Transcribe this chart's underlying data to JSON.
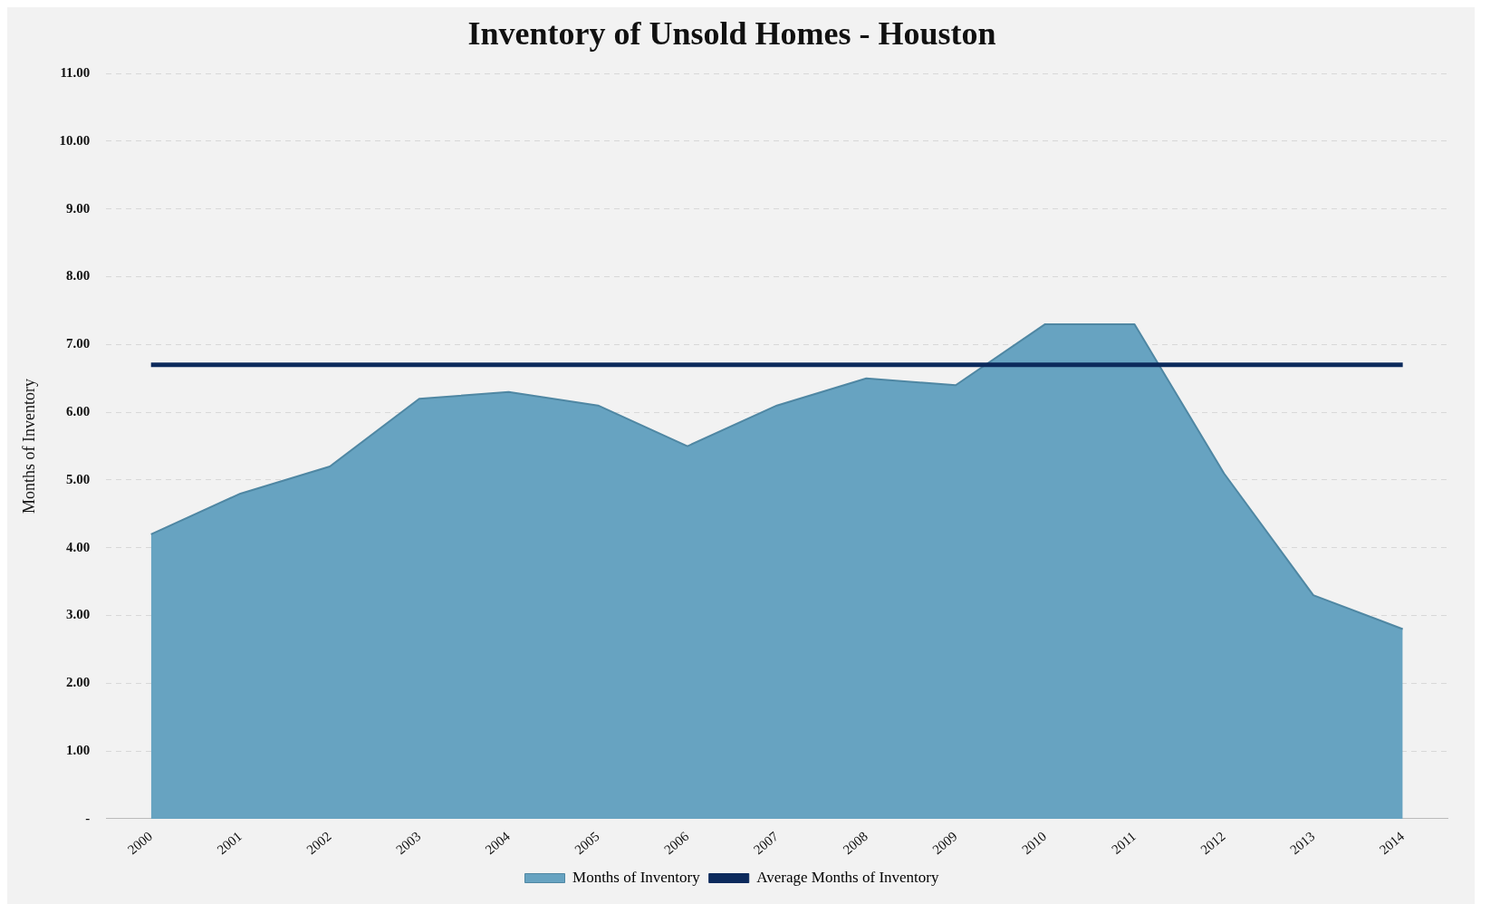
{
  "chart_data": {
    "type": "area",
    "title": "Inventory of Unsold Homes - Houston",
    "ylabel": "Months of Inventory",
    "categories": [
      "2000",
      "2001",
      "2002",
      "2003",
      "2004",
      "2005",
      "2006",
      "2007",
      "2008",
      "2009",
      "2010",
      "2011",
      "2012",
      "2013",
      "2014"
    ],
    "series": [
      {
        "name": "Months of Inventory",
        "color": "#67a3c1",
        "values": [
          4.2,
          4.8,
          5.2,
          6.2,
          6.3,
          6.1,
          5.5,
          6.1,
          6.5,
          6.4,
          7.3,
          7.3,
          5.1,
          3.3,
          2.8
        ]
      },
      {
        "name": "Average Months of Inventory",
        "type": "line",
        "color": "#0c2a5c",
        "values": [
          6.7,
          6.7,
          6.7,
          6.7,
          6.7,
          6.7,
          6.7,
          6.7,
          6.7,
          6.7,
          6.7,
          6.7,
          6.7,
          6.7,
          6.7
        ]
      }
    ],
    "ylim": [
      0,
      11
    ],
    "yticks": [
      {
        "value": 0,
        "label": "-"
      },
      {
        "value": 1,
        "label": "1.00"
      },
      {
        "value": 2,
        "label": "2.00"
      },
      {
        "value": 3,
        "label": "3.00"
      },
      {
        "value": 4,
        "label": "4.00"
      },
      {
        "value": 5,
        "label": "5.00"
      },
      {
        "value": 6,
        "label": "6.00"
      },
      {
        "value": 7,
        "label": "7.00"
      },
      {
        "value": 8,
        "label": "8.00"
      },
      {
        "value": 9,
        "label": "9.00"
      },
      {
        "value": 10,
        "label": "10.00"
      },
      {
        "value": 11,
        "label": "11.00"
      }
    ],
    "grid": "y",
    "legend": "bottom",
    "marker": "none"
  }
}
